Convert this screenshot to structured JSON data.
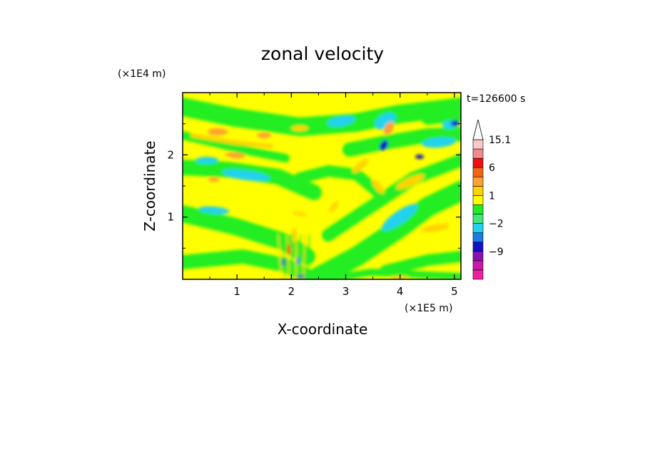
{
  "chart_data": {
    "type": "heatmap",
    "title": "zonal velocity",
    "xlabel": "X-coordinate",
    "ylabel": "Z-coordinate",
    "x_unit": "(×1E5 m)",
    "y_unit": "(×1E4 m)",
    "time_label": "t=126600 s",
    "xlim": [
      0,
      5.12
    ],
    "ylim": [
      0,
      3.0
    ],
    "x_ticks": [
      1,
      2,
      3,
      4,
      5
    ],
    "y_ticks": [
      1,
      2
    ],
    "colorbar": {
      "levels": [
        -15,
        -12,
        -9,
        -6,
        -4,
        -2,
        -1,
        0,
        1,
        2,
        4,
        6,
        9,
        12,
        15.1
      ],
      "colors": [
        "#ee20a0",
        "#c819a8",
        "#8a12b4",
        "#1111c8",
        "#1e7ae6",
        "#22d2ee",
        "#40e87a",
        "#20ee20",
        "#ffff00",
        "#ffd400",
        "#ffa030",
        "#f06414",
        "#ee1010",
        "#f08c8c",
        "#fac8c8"
      ],
      "extend_top": true,
      "labels": [
        {
          "value": 15.1,
          "text": "15.1"
        },
        {
          "value": 6,
          "text": "6"
        },
        {
          "value": 1,
          "text": "1"
        },
        {
          "value": -2,
          "text": "−2"
        },
        {
          "value": -9,
          "text": "−9"
        }
      ]
    }
  }
}
